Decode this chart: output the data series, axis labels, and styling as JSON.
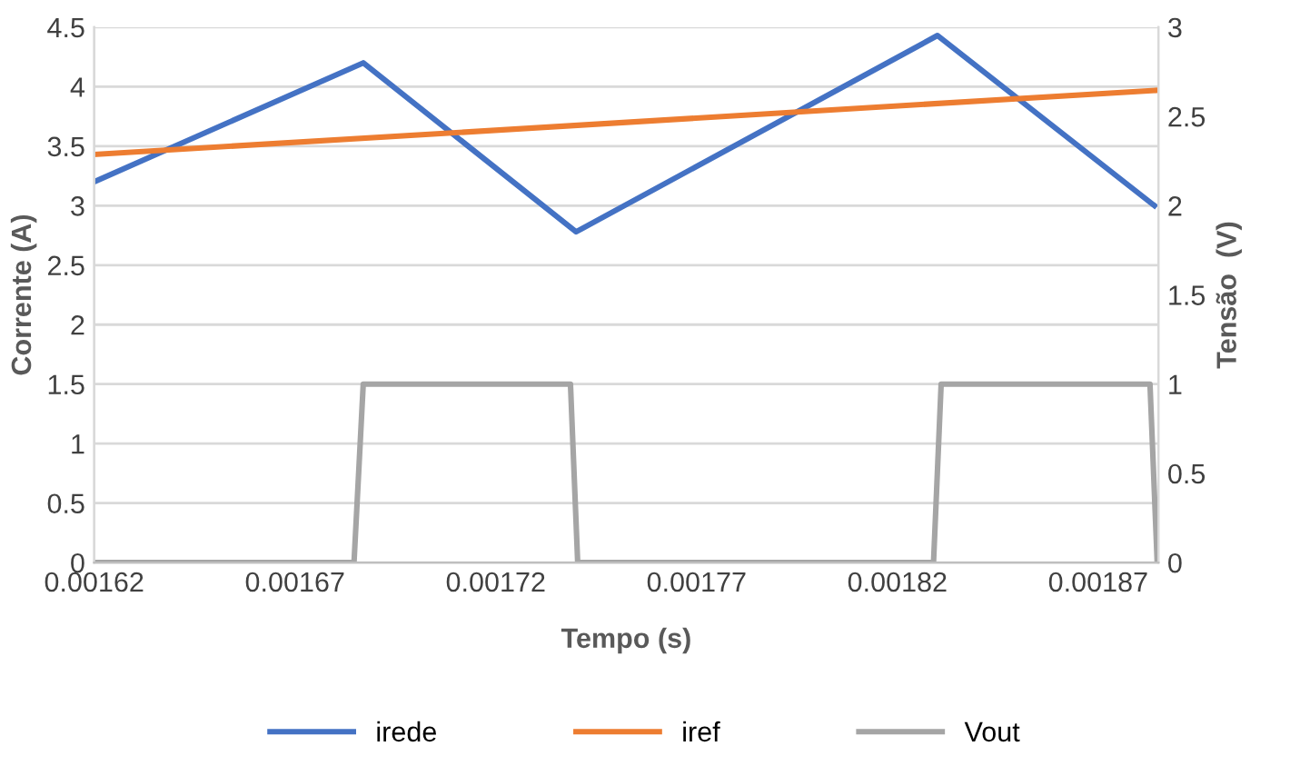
{
  "chart_data": {
    "type": "line",
    "xlabel": "Tempo (s)",
    "ylabel": "Corrente (A)",
    "y2label": "Tensão  (V)",
    "xlim": [
      0.00162,
      0.001885
    ],
    "xticks": [
      0.00162,
      0.00167,
      0.00172,
      0.00177,
      0.00182,
      0.00187
    ],
    "ylim": [
      0,
      4.5
    ],
    "yticks": [
      0,
      0.5,
      1,
      1.5,
      2,
      2.5,
      3,
      3.5,
      4,
      4.5
    ],
    "y2lim": [
      0,
      3
    ],
    "y2ticks": [
      0,
      0.5,
      1,
      1.5,
      2,
      2.5,
      3
    ],
    "grid": "y",
    "legend": "bottom",
    "marker": "none",
    "line_style": "solid",
    "series": [
      {
        "name": "irede",
        "color": "#4472c4",
        "x": [
          0.00162,
          0.001687,
          0.00174,
          0.00183,
          0.001884
        ],
        "values": [
          3.2,
          4.2,
          2.78,
          4.43,
          3.0
        ]
      },
      {
        "name": "iref",
        "color": "#ed7d31",
        "x": [
          0.00162,
          0.001885
        ],
        "values": [
          3.43,
          3.97
        ]
      },
      {
        "name": "Vout",
        "color": "#a5a5a5",
        "axis": "y2",
        "x": [
          0.00162,
          0.0016847,
          0.001687,
          0.0017386,
          0.0017404,
          0.001829,
          0.0018309,
          0.0018829,
          0.0018847
        ],
        "values": [
          0,
          0,
          1,
          1,
          0,
          0,
          1,
          1,
          0
        ]
      }
    ]
  }
}
